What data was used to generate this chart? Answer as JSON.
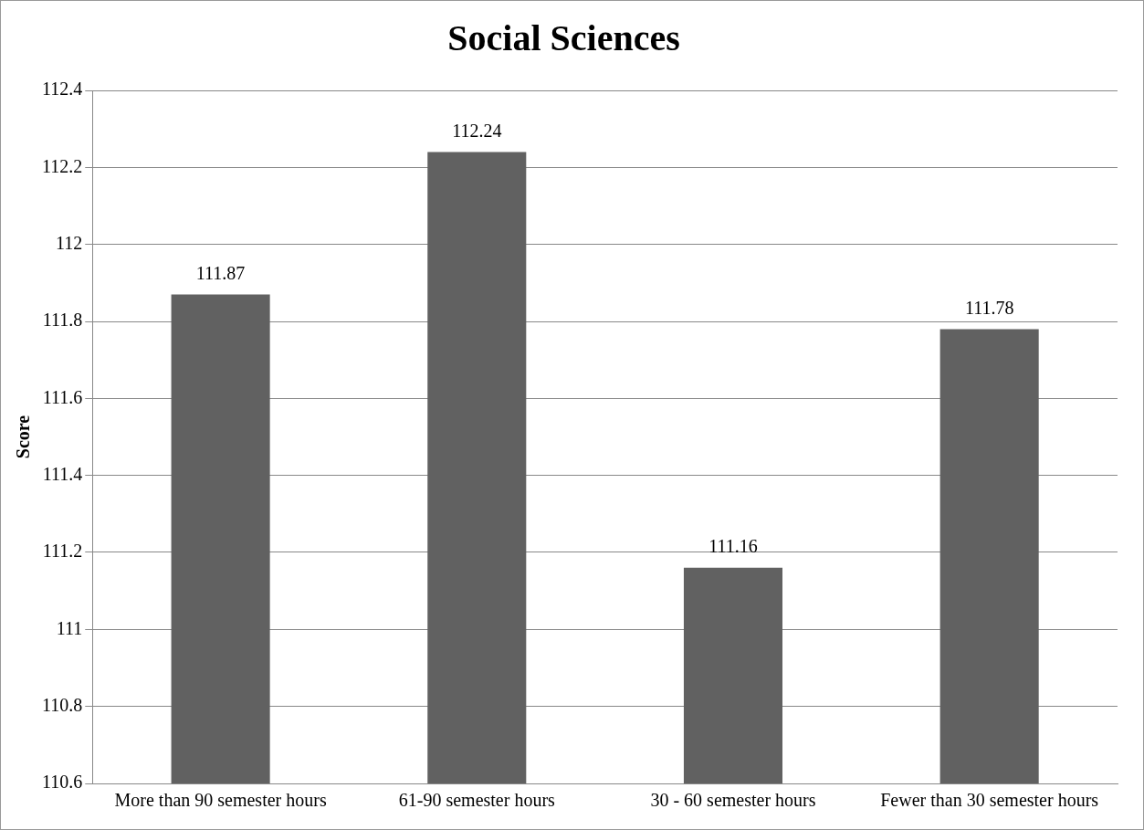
{
  "chart_data": {
    "type": "bar",
    "title": "Social Sciences",
    "ylabel": "Score",
    "categories": [
      "More than 90 semester hours",
      "61-90 semester hours",
      "30 - 60 semester hours",
      "Fewer than 30 semester hours"
    ],
    "values": [
      111.87,
      112.24,
      111.16,
      111.78
    ],
    "color": "#616161",
    "ylim": [
      110.6,
      112.4
    ],
    "yticks": [
      110.6,
      110.8,
      111,
      111.2,
      111.4,
      111.6,
      111.8,
      112,
      112.2,
      112.4
    ],
    "grid": "y",
    "legend": false,
    "data_labels": true
  }
}
